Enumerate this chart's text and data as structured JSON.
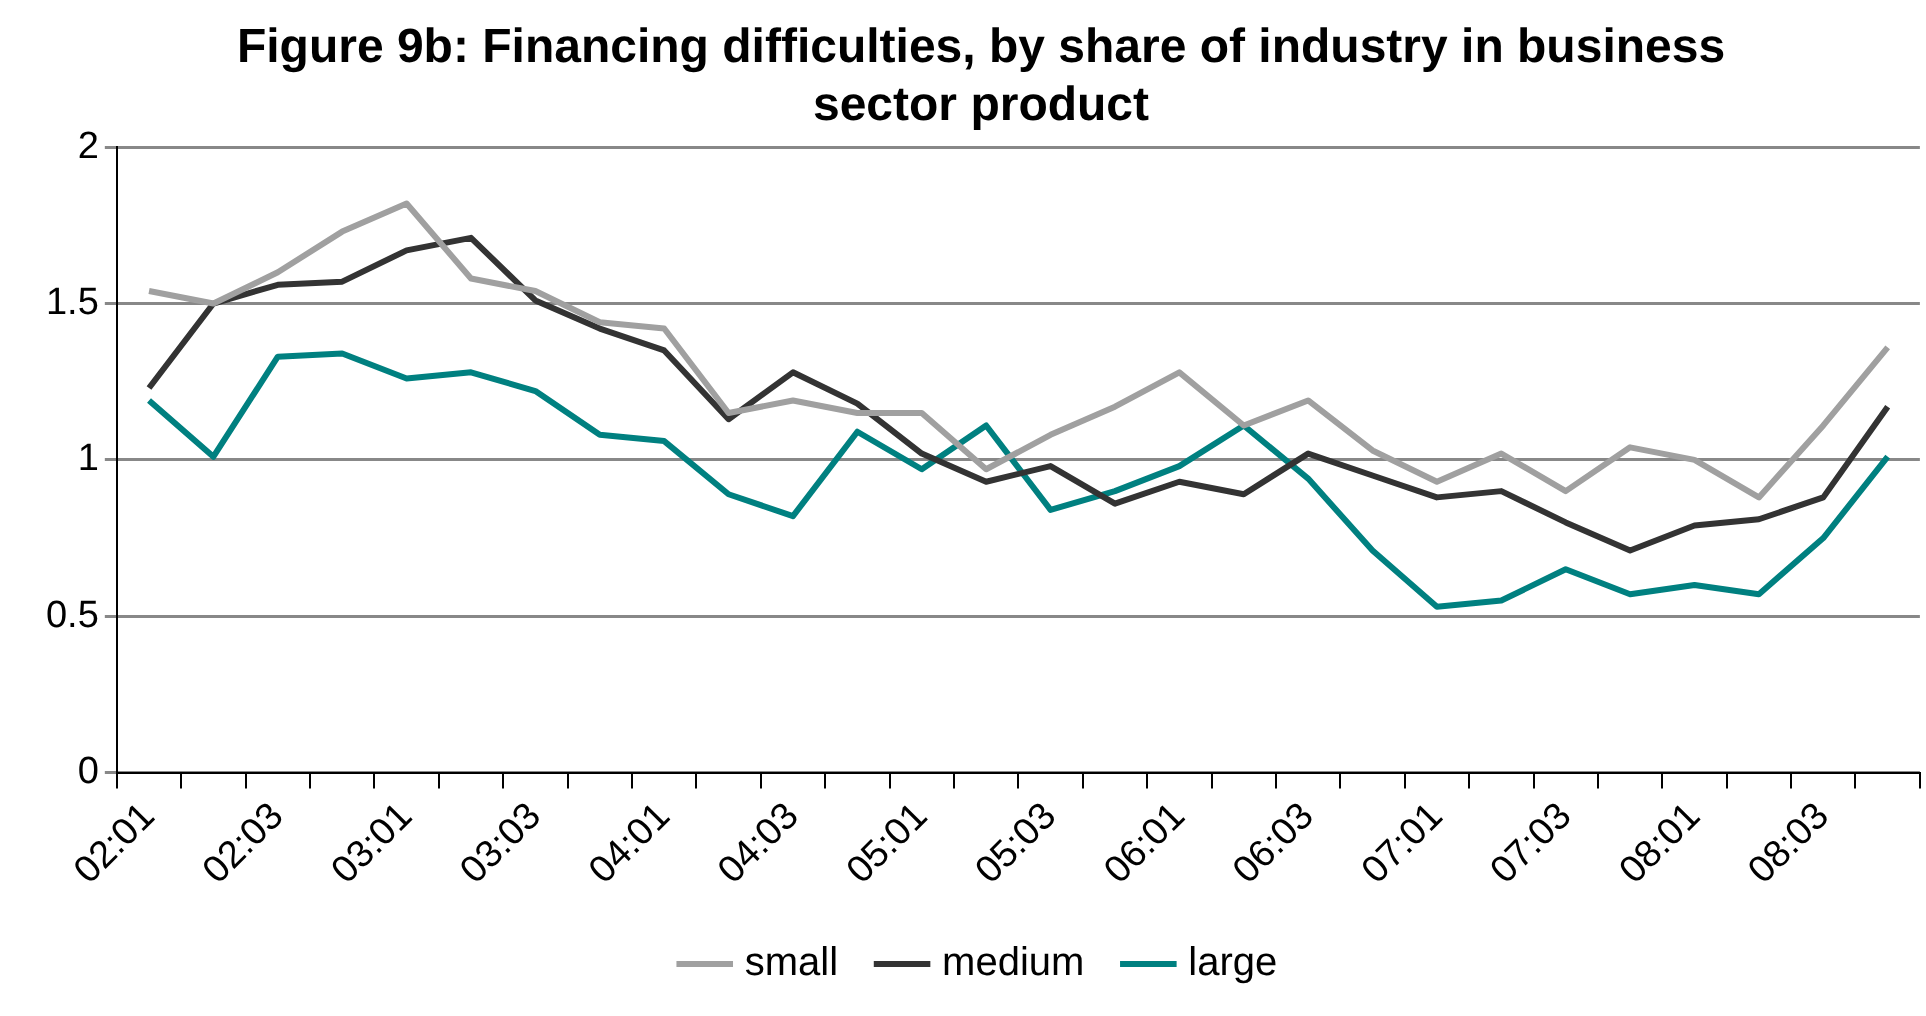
{
  "chart_data": {
    "type": "line",
    "title": "Figure 9b: Financing difficulties, by share of industry in business sector product",
    "categories": [
      "02:01",
      null,
      "02:03",
      null,
      "03:01",
      null,
      "03:03",
      null,
      "04:01",
      null,
      "04:03",
      null,
      "05:01",
      null,
      "05:03",
      null,
      "06:01",
      null,
      "06:03",
      null,
      "07:01",
      null,
      "07:03",
      null,
      "08:01",
      null,
      "08:03",
      null
    ],
    "series": [
      {
        "name": "small",
        "color": "#a0a0a0",
        "values": [
          1.54,
          1.5,
          1.6,
          1.73,
          1.82,
          1.58,
          1.54,
          1.44,
          1.42,
          1.15,
          1.19,
          1.15,
          1.15,
          0.97,
          1.08,
          1.17,
          1.28,
          1.11,
          1.19,
          1.03,
          0.93,
          1.02,
          0.9,
          1.04,
          1.0,
          0.88,
          1.11,
          1.36
        ]
      },
      {
        "name": "medium",
        "color": "#333333",
        "values": [
          1.23,
          1.5,
          1.56,
          1.57,
          1.67,
          1.71,
          1.51,
          1.42,
          1.35,
          1.13,
          1.28,
          1.18,
          1.02,
          0.93,
          0.98,
          0.86,
          0.93,
          0.89,
          1.02,
          0.95,
          0.88,
          0.9,
          0.8,
          0.71,
          0.79,
          0.81,
          0.88,
          1.17
        ]
      },
      {
        "name": "large",
        "color": "#008080",
        "values": [
          1.19,
          1.01,
          1.33,
          1.34,
          1.26,
          1.28,
          1.22,
          1.08,
          1.06,
          0.89,
          0.82,
          1.09,
          0.97,
          1.11,
          0.84,
          0.9,
          0.98,
          1.11,
          0.94,
          0.71,
          0.53,
          0.55,
          0.65,
          0.57,
          0.6,
          0.57,
          0.75,
          1.01
        ]
      }
    ],
    "ylim": [
      0,
      2
    ],
    "yticks": [
      0,
      0.5,
      1,
      1.5,
      2
    ],
    "grid": "y",
    "legend": "bottom",
    "marker": "none",
    "line_style": "solid"
  }
}
